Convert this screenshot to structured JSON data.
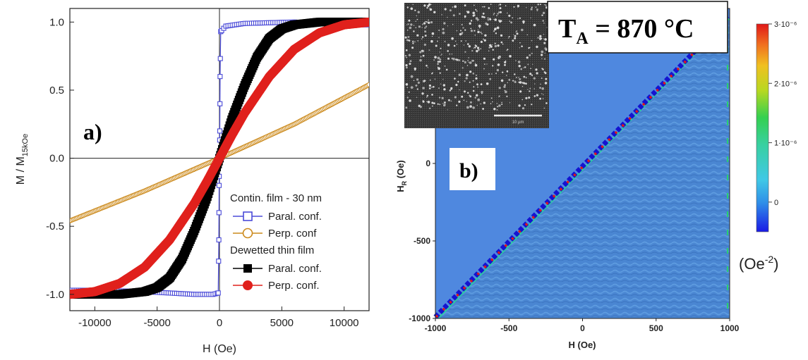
{
  "chart_data": [
    {
      "type": "line",
      "panel_label": "a)",
      "xlabel": "H (Oe)",
      "ylabel": "M / M",
      "ylabel_sub": "15kOe",
      "xlim": [
        -12000,
        12000
      ],
      "ylim": [
        -1.12,
        1.1
      ],
      "x_ticks": [
        -10000,
        -5000,
        0,
        5000,
        10000
      ],
      "x_tick_labels": [
        "-10000",
        "-5000",
        "0",
        "5000",
        "10000"
      ],
      "y_ticks": [
        -1.0,
        -0.5,
        0.0,
        0.5,
        1.0
      ],
      "y_tick_labels": [
        "-1.0",
        "-0.5",
        "0.0",
        "0.5",
        "1.0"
      ],
      "grid": false,
      "zero_lines": true,
      "legend_position": "bottom-right",
      "legend": {
        "group1_title": "Contin. film - 30 nm",
        "group2_title": "Dewetted thin film",
        "entries": [
          {
            "label": "Paral. conf.",
            "marker": "open-square",
            "color": "#4b4bd8"
          },
          {
            "label": "Perp. conf",
            "marker": "open-circle",
            "color": "#cc8a1c"
          },
          {
            "label": "Paral. conf.",
            "marker": "filled-square",
            "color": "#000000"
          },
          {
            "label": "Perp. conf.",
            "marker": "filled-circle",
            "color": "#e0201c"
          }
        ]
      },
      "series": [
        {
          "label": "Paral. conf.",
          "group": "Contin. film - 30 nm",
          "color": "#4b4bd8",
          "x": [
            -12000,
            -10000,
            -6000,
            -2000,
            -500,
            -100,
            -50,
            -30,
            0,
            30,
            50,
            100,
            500,
            2000,
            6000,
            10000,
            12000
          ],
          "y": [
            -0.97,
            -0.97,
            -0.98,
            -1.0,
            -1.0,
            -0.99,
            -0.6,
            -0.2,
            0.0,
            0.2,
            0.6,
            0.93,
            0.97,
            0.99,
            1.0,
            0.98,
            0.98
          ]
        },
        {
          "label": "Perp. conf",
          "group": "Contin. film - 30 nm",
          "color": "#cc8a1c",
          "x": [
            -12000,
            -6000,
            0,
            6000,
            12000
          ],
          "y": [
            -0.46,
            -0.24,
            0.0,
            0.25,
            0.54
          ]
        },
        {
          "label": "Paral. conf.",
          "group": "Dewetted thin film",
          "color": "#000000",
          "x": [
            -12000,
            -8000,
            -6000,
            -5000,
            -4000,
            -3000,
            -2000,
            -1000,
            0,
            1000,
            2000,
            3000,
            4000,
            5000,
            6000,
            8000,
            12000
          ],
          "y": [
            -1.0,
            -1.0,
            -0.98,
            -0.95,
            -0.88,
            -0.74,
            -0.53,
            -0.29,
            0.0,
            0.29,
            0.53,
            0.74,
            0.88,
            0.95,
            0.98,
            1.0,
            1.0
          ]
        },
        {
          "label": "Perp. conf.",
          "group": "Dewetted thin film",
          "color": "#e0201c",
          "x": [
            -12000,
            -10000,
            -8000,
            -6000,
            -4000,
            -2000,
            -1000,
            0,
            1000,
            2000,
            4000,
            6000,
            8000,
            10000,
            12000
          ],
          "y": [
            -1.0,
            -0.98,
            -0.92,
            -0.8,
            -0.6,
            -0.33,
            -0.17,
            0.0,
            0.17,
            0.33,
            0.6,
            0.8,
            0.92,
            0.98,
            1.0
          ]
        }
      ]
    },
    {
      "type": "heatmap",
      "panel_label": "b)",
      "title": "T",
      "title_sub": "A",
      "title_rest": " = 870 °C",
      "xlabel": "H (Oe)",
      "ylabel": "H",
      "ylabel_sub": "R",
      "ylabel_rest": " (Oe)",
      "xlim": [
        -1000,
        1000
      ],
      "ylim": [
        -1000,
        1000
      ],
      "x_ticks": [
        -1000,
        -500,
        0,
        500,
        1000
      ],
      "x_tick_labels": [
        "-1000",
        "-500",
        "0",
        "500",
        "1000"
      ],
      "y_ticks": [
        -1000,
        -500,
        0
      ],
      "y_tick_labels": [
        "-1000",
        "-500",
        "0"
      ],
      "diagonal": {
        "from": [
          -1000,
          -1000
        ],
        "to": [
          1000,
          1000
        ]
      },
      "colorbar": {
        "min": -5e-07,
        "max": 3e-06,
        "ticks": [
          0,
          1e-06,
          2e-06,
          3e-06
        ],
        "tick_labels": [
          "0",
          "1·10⁻⁶",
          "2·10⁻⁶",
          "3·10⁻⁶"
        ],
        "units": "(Oe",
        "units_sup": "-2",
        "units_close": ")"
      },
      "inset": {
        "type": "SEM micrograph",
        "scale_bar_label": "10 µm"
      }
    }
  ]
}
